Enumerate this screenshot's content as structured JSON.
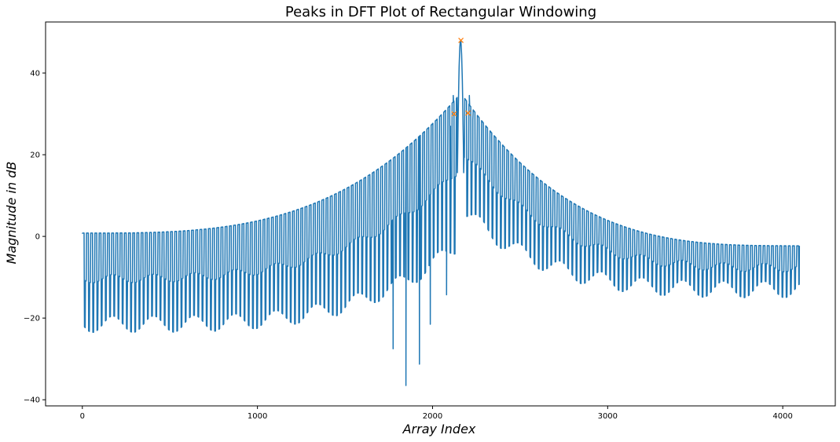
{
  "chart_data": {
    "type": "line",
    "title": "Peaks in DFT Plot of Rectangular Windowing",
    "xlabel": "Array Index",
    "ylabel": "Magnitude in dB",
    "xlim": [
      -210,
      4300
    ],
    "ylim": [
      -41.5,
      52.5
    ],
    "xticks": [
      0,
      1000,
      2000,
      3000,
      4000
    ],
    "yticks": [
      -40,
      -20,
      0,
      20,
      40
    ],
    "grid": false,
    "legend": "none",
    "colors": {
      "line": "#1f77b4",
      "peak_marker": "#ff7f0e"
    },
    "series": [
      {
        "x_range": [
          0,
          4095
        ],
        "main_lobe_center": 2160,
        "main_lobe_peak": 48.0,
        "notable_values": [
          {
            "x": 2118,
            "y": 34.5
          },
          {
            "x": 2210,
            "y": 34.5
          },
          {
            "x": 2230,
            "y": 28.5
          },
          {
            "x": 2102,
            "y": 27.0
          },
          {
            "x": 2080,
            "y": -14.3
          },
          {
            "x": 1987,
            "y": -21.5
          },
          {
            "x": 1848,
            "y": -36.5
          },
          {
            "x": 1925,
            "y": -31.3
          },
          {
            "x": 1775,
            "y": -27.5
          },
          {
            "x": 0,
            "y": 0.8
          },
          {
            "x": 4095,
            "y": -2.3
          }
        ],
        "left_edge": {
          "upper": 0.8,
          "lower": -21.5
        },
        "right_edge": {
          "upper": -2.3,
          "lower": -13.0
        }
      }
    ],
    "peaks": [
      {
        "x": 2123,
        "y": 30.0
      },
      {
        "x": 2162,
        "y": 48.0
      },
      {
        "x": 2203,
        "y": 30.2
      }
    ]
  }
}
